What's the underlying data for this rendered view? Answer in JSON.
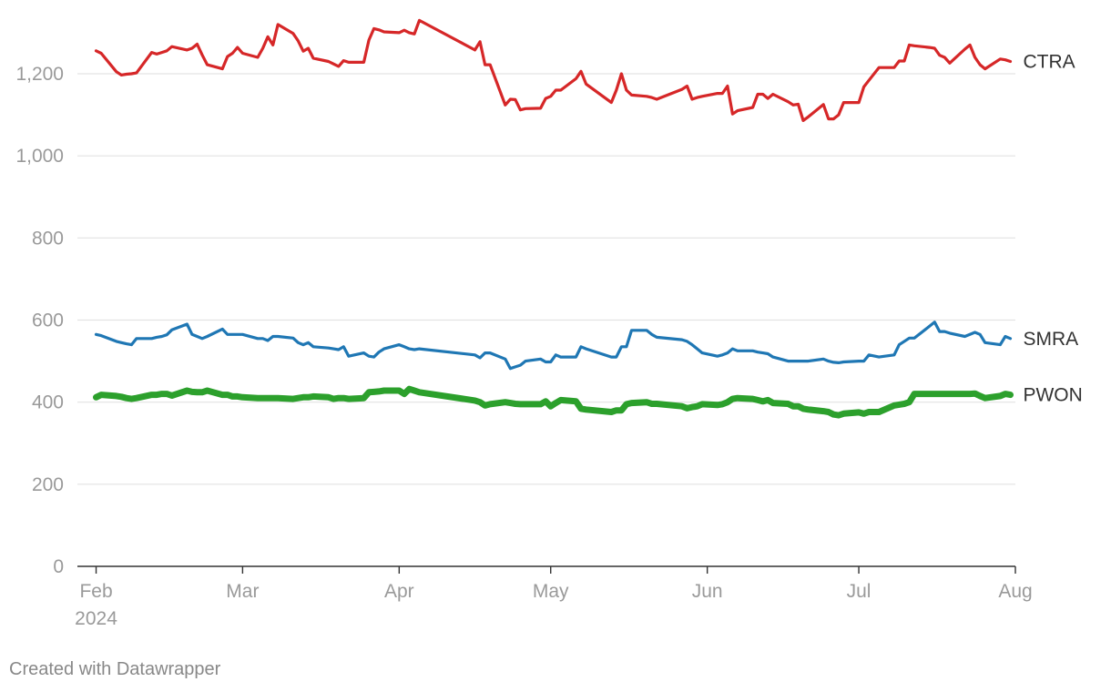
{
  "footer": {
    "credit": "Created with Datawrapper"
  },
  "chart_data": {
    "type": "line",
    "title": "",
    "xlabel": "",
    "ylabel": "",
    "x_range": [
      "2024-01-31",
      "2024-08-01"
    ],
    "ylim": [
      0,
      1300
    ],
    "y_ticks": [
      0,
      200,
      400,
      600,
      800,
      1000,
      1200
    ],
    "y_tick_labels": [
      "0",
      "200",
      "400",
      "600",
      "800",
      "1,000",
      "1,200"
    ],
    "x_ticks": [
      {
        "date": "2024-02-01",
        "label": "Feb"
      },
      {
        "date": "2024-03-01",
        "label": "Mar"
      },
      {
        "date": "2024-04-01",
        "label": "Apr"
      },
      {
        "date": "2024-05-01",
        "label": "May"
      },
      {
        "date": "2024-06-01",
        "label": "Jun"
      },
      {
        "date": "2024-07-01",
        "label": "Jul"
      },
      {
        "date": "2024-08-01",
        "label": "Aug"
      }
    ],
    "x_year_label": "2024",
    "grid": true,
    "legend": "direct labels at line ends (right)",
    "series": [
      {
        "name": "CTRA",
        "color": "#d62728",
        "x": [
          "2024-02-01",
          "2024-02-02",
          "2024-02-05",
          "2024-02-06",
          "2024-02-07",
          "2024-02-08",
          "2024-02-09",
          "2024-02-12",
          "2024-02-13",
          "2024-02-14",
          "2024-02-15",
          "2024-02-16",
          "2024-02-19",
          "2024-02-20",
          "2024-02-21",
          "2024-02-22",
          "2024-02-23",
          "2024-02-26",
          "2024-02-27",
          "2024-02-28",
          "2024-02-29",
          "2024-03-01",
          "2024-03-04",
          "2024-03-05",
          "2024-03-06",
          "2024-03-07",
          "2024-03-08",
          "2024-03-11",
          "2024-03-12",
          "2024-03-13",
          "2024-03-14",
          "2024-03-15",
          "2024-03-18",
          "2024-03-19",
          "2024-03-20",
          "2024-03-21",
          "2024-03-22",
          "2024-03-25",
          "2024-03-26",
          "2024-03-27",
          "2024-03-28",
          "2024-03-29",
          "2024-04-01",
          "2024-04-02",
          "2024-04-03",
          "2024-04-04",
          "2024-04-05",
          "2024-04-16",
          "2024-04-17",
          "2024-04-18",
          "2024-04-19",
          "2024-04-22",
          "2024-04-23",
          "2024-04-24",
          "2024-04-25",
          "2024-04-26",
          "2024-04-29",
          "2024-04-30",
          "2024-05-01",
          "2024-05-02",
          "2024-05-03",
          "2024-05-06",
          "2024-05-07",
          "2024-05-08",
          "2024-05-13",
          "2024-05-14",
          "2024-05-15",
          "2024-05-16",
          "2024-05-17",
          "2024-05-20",
          "2024-05-21",
          "2024-05-22",
          "2024-05-27",
          "2024-05-28",
          "2024-05-29",
          "2024-05-30",
          "2024-05-31",
          "2024-06-03",
          "2024-06-04",
          "2024-06-05",
          "2024-06-06",
          "2024-06-07",
          "2024-06-10",
          "2024-06-11",
          "2024-06-12",
          "2024-06-13",
          "2024-06-14",
          "2024-06-17",
          "2024-06-18",
          "2024-06-19",
          "2024-06-20",
          "2024-06-21",
          "2024-06-24",
          "2024-06-25",
          "2024-06-26",
          "2024-06-27",
          "2024-06-28",
          "2024-07-01",
          "2024-07-02",
          "2024-07-03",
          "2024-07-05",
          "2024-07-08",
          "2024-07-09",
          "2024-07-10",
          "2024-07-11",
          "2024-07-12",
          "2024-07-15",
          "2024-07-16",
          "2024-07-17",
          "2024-07-18",
          "2024-07-19",
          "2024-07-22",
          "2024-07-23",
          "2024-07-24",
          "2024-07-25",
          "2024-07-26",
          "2024-07-29",
          "2024-07-30",
          "2024-07-31"
        ],
        "y": [
          1256,
          1250,
          1205,
          1197,
          1199,
          1200,
          1202,
          1252,
          1248,
          1252,
          1256,
          1266,
          1258,
          1262,
          1272,
          1246,
          1222,
          1212,
          1242,
          1250,
          1264,
          1250,
          1240,
          1262,
          1290,
          1270,
          1320,
          1298,
          1280,
          1255,
          1262,
          1238,
          1230,
          1224,
          1218,
          1232,
          1228,
          1228,
          1282,
          1310,
          1307,
          1302,
          1300,
          1306,
          1300,
          1297,
          1330,
          1258,
          1278,
          1222,
          1222,
          1124,
          1138,
          1137,
          1112,
          1115,
          1116,
          1140,
          1145,
          1160,
          1160,
          1188,
          1206,
          1175,
          1130,
          1160,
          1200,
          1160,
          1148,
          1145,
          1142,
          1138,
          1162,
          1170,
          1138,
          1142,
          1145,
          1152,
          1152,
          1170,
          1102,
          1110,
          1118,
          1150,
          1150,
          1140,
          1150,
          1132,
          1124,
          1126,
          1086,
          1095,
          1125,
          1090,
          1090,
          1100,
          1130,
          1130,
          1168,
          1184,
          1215,
          1215,
          1231,
          1231,
          1270,
          1268,
          1264,
          1262,
          1245,
          1240,
          1226,
          1260,
          1270,
          1240,
          1222,
          1212,
          1236,
          1234,
          1230
        ]
      },
      {
        "name": "SMRA",
        "color": "#1f77b4",
        "x": [
          "2024-02-01",
          "2024-02-02",
          "2024-02-05",
          "2024-02-06",
          "2024-02-07",
          "2024-02-08",
          "2024-02-09",
          "2024-02-12",
          "2024-02-13",
          "2024-02-14",
          "2024-02-15",
          "2024-02-16",
          "2024-02-19",
          "2024-02-20",
          "2024-02-21",
          "2024-02-22",
          "2024-02-23",
          "2024-02-26",
          "2024-02-27",
          "2024-02-28",
          "2024-02-29",
          "2024-03-01",
          "2024-03-04",
          "2024-03-05",
          "2024-03-06",
          "2024-03-07",
          "2024-03-08",
          "2024-03-11",
          "2024-03-12",
          "2024-03-13",
          "2024-03-14",
          "2024-03-15",
          "2024-03-18",
          "2024-03-19",
          "2024-03-20",
          "2024-03-21",
          "2024-03-22",
          "2024-03-25",
          "2024-03-26",
          "2024-03-27",
          "2024-03-28",
          "2024-03-29",
          "2024-04-01",
          "2024-04-02",
          "2024-04-03",
          "2024-04-04",
          "2024-04-05",
          "2024-04-16",
          "2024-04-17",
          "2024-04-18",
          "2024-04-19",
          "2024-04-22",
          "2024-04-23",
          "2024-04-24",
          "2024-04-25",
          "2024-04-26",
          "2024-04-29",
          "2024-04-30",
          "2024-05-01",
          "2024-05-02",
          "2024-05-03",
          "2024-05-06",
          "2024-05-07",
          "2024-05-08",
          "2024-05-13",
          "2024-05-14",
          "2024-05-15",
          "2024-05-16",
          "2024-05-17",
          "2024-05-20",
          "2024-05-21",
          "2024-05-22",
          "2024-05-27",
          "2024-05-28",
          "2024-05-29",
          "2024-05-30",
          "2024-05-31",
          "2024-06-03",
          "2024-06-04",
          "2024-06-05",
          "2024-06-06",
          "2024-06-07",
          "2024-06-10",
          "2024-06-11",
          "2024-06-12",
          "2024-06-13",
          "2024-06-14",
          "2024-06-17",
          "2024-06-18",
          "2024-06-19",
          "2024-06-20",
          "2024-06-21",
          "2024-06-24",
          "2024-06-25",
          "2024-06-26",
          "2024-06-27",
          "2024-06-28",
          "2024-07-01",
          "2024-07-02",
          "2024-07-03",
          "2024-07-05",
          "2024-07-08",
          "2024-07-09",
          "2024-07-10",
          "2024-07-11",
          "2024-07-12",
          "2024-07-15",
          "2024-07-16",
          "2024-07-17",
          "2024-07-18",
          "2024-07-19",
          "2024-07-22",
          "2024-07-23",
          "2024-07-24",
          "2024-07-25",
          "2024-07-26",
          "2024-07-29",
          "2024-07-30",
          "2024-07-31"
        ],
        "y": [
          565,
          562,
          548,
          545,
          542,
          540,
          555,
          555,
          558,
          560,
          564,
          576,
          590,
          565,
          560,
          555,
          560,
          578,
          565,
          565,
          565,
          565,
          555,
          555,
          550,
          560,
          560,
          556,
          545,
          540,
          545,
          535,
          532,
          530,
          528,
          535,
          512,
          520,
          512,
          510,
          522,
          530,
          540,
          535,
          530,
          528,
          530,
          515,
          508,
          520,
          520,
          505,
          482,
          486,
          490,
          500,
          505,
          498,
          498,
          515,
          510,
          510,
          535,
          530,
          510,
          510,
          535,
          535,
          575,
          575,
          565,
          558,
          552,
          548,
          540,
          530,
          520,
          512,
          515,
          520,
          530,
          525,
          525,
          522,
          520,
          518,
          510,
          500,
          500,
          500,
          500,
          500,
          505,
          500,
          497,
          496,
          498,
          500,
          500,
          515,
          510,
          515,
          540,
          548,
          556,
          556,
          585,
          595,
          572,
          572,
          568,
          560,
          565,
          570,
          565,
          545,
          540,
          560,
          555
        ]
      },
      {
        "name": "PWON",
        "color": "#2ca02c",
        "x": [
          "2024-02-01",
          "2024-02-02",
          "2024-02-05",
          "2024-02-06",
          "2024-02-07",
          "2024-02-08",
          "2024-02-09",
          "2024-02-12",
          "2024-02-13",
          "2024-02-14",
          "2024-02-15",
          "2024-02-16",
          "2024-02-19",
          "2024-02-20",
          "2024-02-21",
          "2024-02-22",
          "2024-02-23",
          "2024-02-26",
          "2024-02-27",
          "2024-02-28",
          "2024-02-29",
          "2024-03-01",
          "2024-03-04",
          "2024-03-05",
          "2024-03-06",
          "2024-03-07",
          "2024-03-08",
          "2024-03-11",
          "2024-03-12",
          "2024-03-13",
          "2024-03-14",
          "2024-03-15",
          "2024-03-18",
          "2024-03-19",
          "2024-03-20",
          "2024-03-21",
          "2024-03-22",
          "2024-03-25",
          "2024-03-26",
          "2024-03-27",
          "2024-03-28",
          "2024-03-29",
          "2024-04-01",
          "2024-04-02",
          "2024-04-03",
          "2024-04-04",
          "2024-04-05",
          "2024-04-16",
          "2024-04-17",
          "2024-04-18",
          "2024-04-19",
          "2024-04-22",
          "2024-04-23",
          "2024-04-24",
          "2024-04-25",
          "2024-04-26",
          "2024-04-29",
          "2024-04-30",
          "2024-05-01",
          "2024-05-02",
          "2024-05-03",
          "2024-05-06",
          "2024-05-07",
          "2024-05-08",
          "2024-05-13",
          "2024-05-14",
          "2024-05-15",
          "2024-05-16",
          "2024-05-17",
          "2024-05-20",
          "2024-05-21",
          "2024-05-22",
          "2024-05-27",
          "2024-05-28",
          "2024-05-29",
          "2024-05-30",
          "2024-05-31",
          "2024-06-03",
          "2024-06-04",
          "2024-06-05",
          "2024-06-06",
          "2024-06-07",
          "2024-06-10",
          "2024-06-11",
          "2024-06-12",
          "2024-06-13",
          "2024-06-14",
          "2024-06-17",
          "2024-06-18",
          "2024-06-19",
          "2024-06-20",
          "2024-06-21",
          "2024-06-24",
          "2024-06-25",
          "2024-06-26",
          "2024-06-27",
          "2024-06-28",
          "2024-07-01",
          "2024-07-02",
          "2024-07-03",
          "2024-07-05",
          "2024-07-08",
          "2024-07-09",
          "2024-07-10",
          "2024-07-11",
          "2024-07-12",
          "2024-07-15",
          "2024-07-16",
          "2024-07-17",
          "2024-07-18",
          "2024-07-19",
          "2024-07-22",
          "2024-07-23",
          "2024-07-24",
          "2024-07-25",
          "2024-07-26",
          "2024-07-29",
          "2024-07-30",
          "2024-07-31"
        ],
        "y": [
          412,
          418,
          415,
          413,
          410,
          408,
          410,
          418,
          418,
          420,
          420,
          416,
          428,
          425,
          424,
          424,
          428,
          418,
          418,
          414,
          414,
          412,
          410,
          410,
          410,
          410,
          410,
          408,
          410,
          412,
          412,
          414,
          412,
          408,
          410,
          410,
          408,
          410,
          424,
          425,
          426,
          428,
          428,
          420,
          432,
          428,
          424,
          404,
          400,
          392,
          395,
          400,
          398,
          396,
          395,
          395,
          395,
          402,
          390,
          398,
          405,
          402,
          384,
          382,
          376,
          380,
          380,
          395,
          398,
          400,
          396,
          396,
          390,
          385,
          388,
          390,
          395,
          393,
          395,
          400,
          408,
          410,
          408,
          405,
          402,
          405,
          398,
          396,
          390,
          390,
          384,
          382,
          378,
          376,
          370,
          368,
          372,
          375,
          372,
          376,
          376,
          392,
          394,
          396,
          400,
          420,
          420,
          420,
          420,
          420,
          420,
          420,
          420,
          421,
          415,
          410,
          415,
          420,
          418
        ]
      }
    ]
  }
}
